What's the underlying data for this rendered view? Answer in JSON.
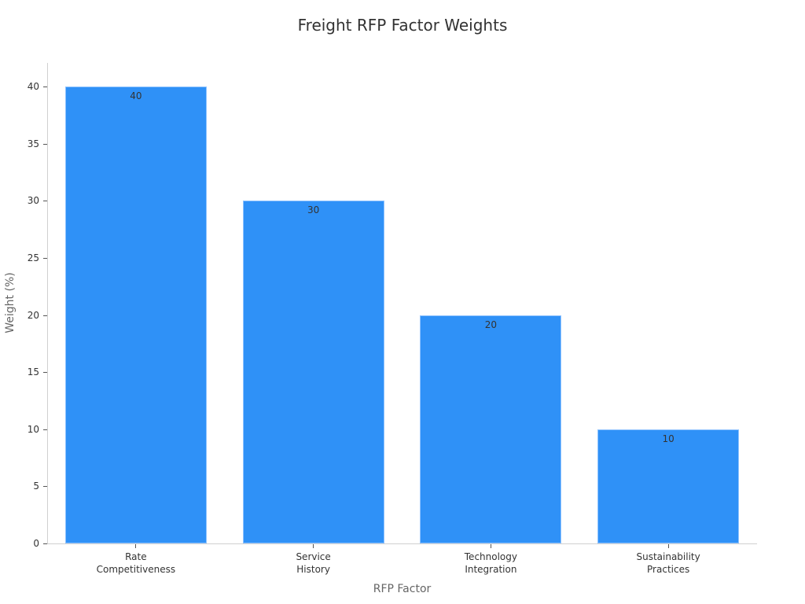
{
  "chart_data": {
    "type": "bar",
    "title": "Freight RFP Factor Weights",
    "xlabel": "RFP Factor",
    "ylabel": "Weight (%)",
    "categories": [
      "Rate\nCompetitiveness",
      "Service\nHistory",
      "Technology\nIntegration",
      "Sustainability\nPractices"
    ],
    "values": [
      40,
      30,
      20,
      10
    ],
    "data_labels": [
      "40",
      "30",
      "20",
      "10"
    ],
    "yticks": [
      "0",
      "5",
      "10",
      "15",
      "20",
      "25",
      "30",
      "35",
      "40"
    ],
    "ylim": [
      0,
      42
    ],
    "grid": false,
    "legend": null,
    "bar_color": "#2f91f7"
  }
}
